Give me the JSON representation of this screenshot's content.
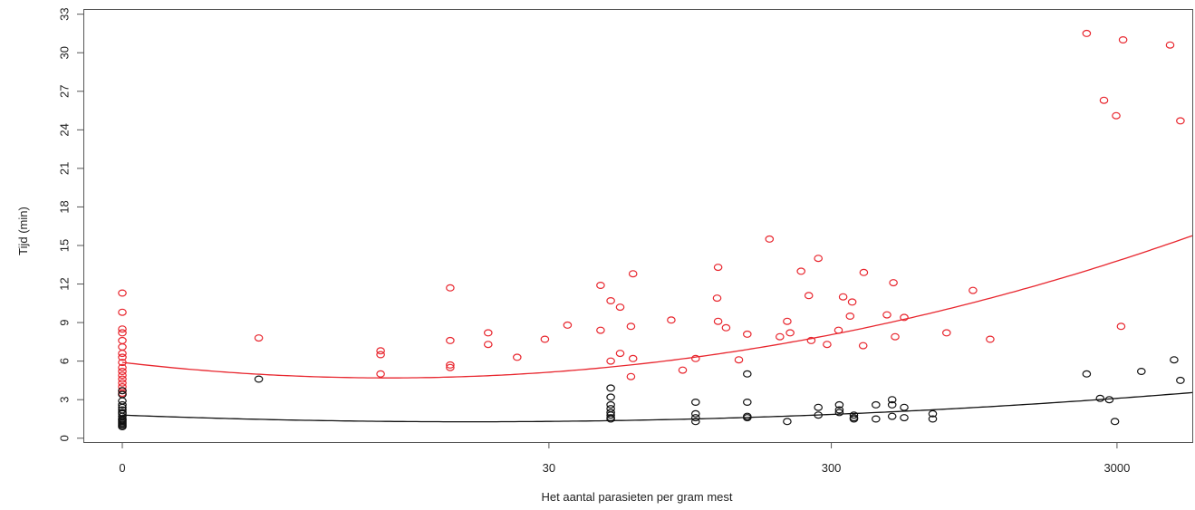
{
  "chart_data": {
    "type": "scatter",
    "title": "",
    "xlabel": "Het aantal parasieten per gram mest",
    "ylabel": "Tijd (min)",
    "x_scale": "log10(x+1)",
    "xlim": [
      0,
      5500
    ],
    "ylim": [
      -0.3,
      33.4
    ],
    "xticks": [
      {
        "value": 0,
        "label": "0"
      },
      {
        "value": 30,
        "label": "30"
      },
      {
        "value": 300,
        "label": "300"
      },
      {
        "value": 3000,
        "label": "3000"
      }
    ],
    "yticks": [
      {
        "value": 0,
        "label": "0"
      },
      {
        "value": 3,
        "label": "3"
      },
      {
        "value": 6,
        "label": "6"
      },
      {
        "value": 9,
        "label": "9"
      },
      {
        "value": 12,
        "label": "12"
      },
      {
        "value": 15,
        "label": "15"
      },
      {
        "value": 18,
        "label": "18"
      },
      {
        "value": 21,
        "label": "21"
      },
      {
        "value": 24,
        "label": "24"
      },
      {
        "value": 27,
        "label": "27"
      },
      {
        "value": 30,
        "label": "30"
      },
      {
        "value": 33,
        "label": "33"
      }
    ],
    "grid": false,
    "series": [
      {
        "color": "#e8262e",
        "points": [
          [
            0,
            11.3
          ],
          [
            0,
            9.8
          ],
          [
            0,
            8.5
          ],
          [
            0,
            8.2
          ],
          [
            0,
            7.6
          ],
          [
            0,
            7.1
          ],
          [
            0,
            6.6
          ],
          [
            0,
            6.3
          ],
          [
            0,
            5.9
          ],
          [
            0,
            5.5
          ],
          [
            0,
            5.2
          ],
          [
            0,
            4.9
          ],
          [
            0,
            4.6
          ],
          [
            0,
            4.3
          ],
          [
            0,
            4.0
          ],
          [
            0,
            3.7
          ],
          [
            0,
            3.5
          ],
          [
            2,
            7.8
          ],
          [
            7,
            6.8
          ],
          [
            7,
            6.5
          ],
          [
            7,
            5.0
          ],
          [
            13,
            11.7
          ],
          [
            13,
            7.6
          ],
          [
            13,
            5.7
          ],
          [
            13,
            5.5
          ],
          [
            18,
            8.2
          ],
          [
            18,
            7.3
          ],
          [
            23,
            6.3
          ],
          [
            29,
            7.7
          ],
          [
            35,
            8.8
          ],
          [
            46,
            11.9
          ],
          [
            46,
            8.4
          ],
          [
            50,
            10.7
          ],
          [
            50,
            6.0
          ],
          [
            54,
            10.2
          ],
          [
            54,
            6.6
          ],
          [
            60,
            12.8
          ],
          [
            59,
            8.7
          ],
          [
            60,
            6.2
          ],
          [
            59,
            4.8
          ],
          [
            82,
            9.2
          ],
          [
            90,
            5.3
          ],
          [
            100,
            6.2
          ],
          [
            120,
            13.3
          ],
          [
            119,
            10.9
          ],
          [
            120,
            9.1
          ],
          [
            128,
            8.6
          ],
          [
            142,
            6.1
          ],
          [
            152,
            8.1
          ],
          [
            182,
            15.5
          ],
          [
            198,
            7.9
          ],
          [
            210,
            9.1
          ],
          [
            215,
            8.2
          ],
          [
            235,
            13.0
          ],
          [
            250,
            11.1
          ],
          [
            255,
            7.6
          ],
          [
            270,
            14.0
          ],
          [
            290,
            7.3
          ],
          [
            330,
            11.0
          ],
          [
            318,
            8.4
          ],
          [
            355,
            10.6
          ],
          [
            349,
            9.5
          ],
          [
            390,
            12.9
          ],
          [
            388,
            7.2
          ],
          [
            470,
            9.6
          ],
          [
            495,
            12.1
          ],
          [
            502,
            7.9
          ],
          [
            540,
            9.4
          ],
          [
            760,
            8.2
          ],
          [
            940,
            11.5
          ],
          [
            1080,
            7.7
          ],
          [
            2350,
            31.5
          ],
          [
            2700,
            26.3
          ],
          [
            2980,
            25.1
          ],
          [
            3150,
            31.0
          ],
          [
            3100,
            8.7
          ],
          [
            4600,
            30.6
          ],
          [
            5000,
            24.7
          ]
        ]
      },
      {
        "color": "#111111",
        "points": [
          [
            0,
            3.7
          ],
          [
            0,
            3.4
          ],
          [
            0,
            2.9
          ],
          [
            0,
            2.6
          ],
          [
            0,
            2.4
          ],
          [
            0,
            2.2
          ],
          [
            0,
            2.0
          ],
          [
            0,
            1.9
          ],
          [
            0,
            1.7
          ],
          [
            0,
            1.5
          ],
          [
            0,
            1.4
          ],
          [
            0,
            1.3
          ],
          [
            0,
            1.2
          ],
          [
            0,
            1.1
          ],
          [
            0,
            1.0
          ],
          [
            0,
            0.9
          ],
          [
            2,
            4.6
          ],
          [
            50,
            3.9
          ],
          [
            50,
            3.2
          ],
          [
            50,
            2.6
          ],
          [
            50,
            2.3
          ],
          [
            50,
            2.0
          ],
          [
            50,
            1.8
          ],
          [
            50,
            1.6
          ],
          [
            50,
            1.5
          ],
          [
            100,
            2.8
          ],
          [
            100,
            1.9
          ],
          [
            100,
            1.6
          ],
          [
            100,
            1.3
          ],
          [
            152,
            5.0
          ],
          [
            152,
            2.8
          ],
          [
            152,
            1.7
          ],
          [
            152,
            1.6
          ],
          [
            210,
            1.3
          ],
          [
            270,
            2.4
          ],
          [
            270,
            1.8
          ],
          [
            320,
            2.6
          ],
          [
            320,
            2.2
          ],
          [
            320,
            2.0
          ],
          [
            360,
            1.8
          ],
          [
            360,
            1.6
          ],
          [
            360,
            1.5
          ],
          [
            430,
            2.6
          ],
          [
            430,
            1.5
          ],
          [
            490,
            3.0
          ],
          [
            490,
            2.6
          ],
          [
            490,
            1.7
          ],
          [
            540,
            2.4
          ],
          [
            540,
            1.6
          ],
          [
            680,
            1.9
          ],
          [
            680,
            1.5
          ],
          [
            2350,
            5.0
          ],
          [
            2620,
            3.1
          ],
          [
            2820,
            3.0
          ],
          [
            2950,
            1.3
          ],
          [
            3650,
            5.2
          ],
          [
            4750,
            6.1
          ],
          [
            5000,
            4.5
          ]
        ]
      }
    ],
    "fit_curves": [
      {
        "color": "#e8262e",
        "model": "quadratic in log10(x+1)",
        "coefficients": [
          5.9,
          -2.6,
          1.4
        ]
      },
      {
        "color": "#111111",
        "model": "quadratic in log10(x+1)",
        "coefficients": [
          1.8,
          -0.86,
          0.355
        ]
      }
    ]
  }
}
